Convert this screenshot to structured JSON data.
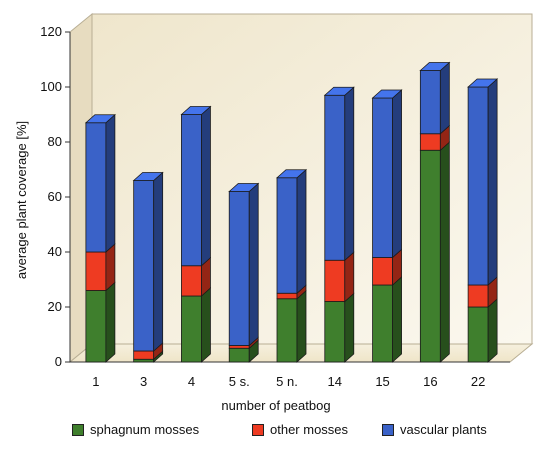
{
  "chart_data": {
    "type": "bar",
    "stacked": true,
    "three_d": true,
    "categories": [
      "1",
      "3",
      "4",
      "5 s.",
      "5 n.",
      "14",
      "15",
      "16",
      "22"
    ],
    "series": [
      {
        "name": "sphagnum mosses",
        "color": "#3f7f2d",
        "values": [
          26,
          1,
          24,
          5,
          23,
          22,
          28,
          77,
          20
        ]
      },
      {
        "name": "other mosses",
        "color": "#ee3b22",
        "values": [
          14,
          3,
          11,
          1,
          2,
          15,
          10,
          6,
          8
        ]
      },
      {
        "name": "vascular plants",
        "color": "#3a62c8",
        "values": [
          47,
          62,
          55,
          56,
          42,
          60,
          58,
          23,
          72
        ]
      }
    ],
    "xlabel": "number of peatbog",
    "ylabel": "average plant coverage [%]",
    "ylim": [
      0,
      120
    ],
    "yticks": [
      0,
      20,
      40,
      60,
      80,
      100,
      120
    ],
    "grid": false,
    "legend_position": "bottom"
  }
}
